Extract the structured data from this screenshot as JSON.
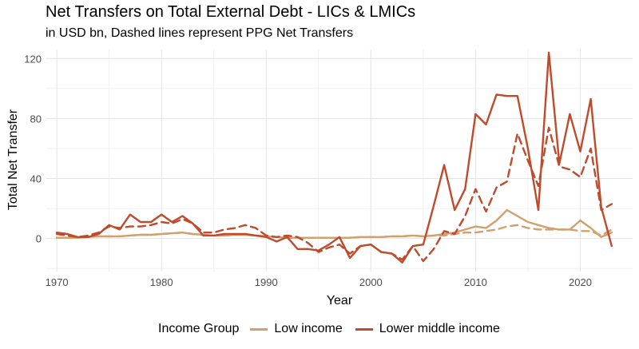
{
  "chart_data": {
    "type": "line",
    "title": "Net Transfers on Total External Debt - LICs & LMICs",
    "subtitle": "in USD bn, Dashed lines represent PPG Net Transfers",
    "xlabel": "Year",
    "ylabel": "Total Net Transfer",
    "xlim": [
      1969,
      2025
    ],
    "ylim": [
      -22,
      126
    ],
    "xticks": [
      1970,
      1980,
      1990,
      2000,
      2010,
      2020
    ],
    "yticks": [
      0,
      40,
      80,
      120
    ],
    "x": [
      1970,
      1971,
      1972,
      1973,
      1974,
      1975,
      1976,
      1977,
      1978,
      1979,
      1980,
      1981,
      1982,
      1983,
      1984,
      1985,
      1986,
      1987,
      1988,
      1989,
      1990,
      1991,
      1992,
      1993,
      1994,
      1995,
      1996,
      1997,
      1998,
      1999,
      2000,
      2001,
      2002,
      2003,
      2004,
      2005,
      2006,
      2007,
      2008,
      2009,
      2010,
      2011,
      2012,
      2013,
      2014,
      2015,
      2016,
      2017,
      2018,
      2019,
      2020,
      2021,
      2022,
      2023
    ],
    "series": [
      {
        "name": "Low income",
        "style": "solid",
        "color": "#d2a06c",
        "values": [
          0.5,
          0.5,
          0.5,
          1,
          1.5,
          1.5,
          1.5,
          2,
          2.5,
          2.5,
          3,
          3.5,
          4,
          3,
          2.5,
          2,
          2,
          2.5,
          2.5,
          2,
          1.5,
          1,
          0.5,
          0.5,
          0.5,
          0.5,
          0.5,
          0.5,
          0.5,
          1,
          1,
          1,
          1.5,
          1.5,
          2,
          1.5,
          2,
          3,
          4,
          6,
          8,
          7,
          12,
          19,
          15,
          11,
          9,
          7,
          6,
          6,
          12,
          7,
          1,
          4
        ]
      },
      {
        "name": "Low income (PPG)",
        "style": "dashed",
        "color": "#d2a06c",
        "values": [
          0.5,
          0.5,
          0.5,
          1,
          1.5,
          1.5,
          1.5,
          2,
          2.5,
          2.5,
          3,
          3.5,
          4,
          3,
          2.5,
          2,
          2,
          2.5,
          2.5,
          2,
          1.5,
          1,
          0.5,
          0.5,
          0.5,
          0.5,
          0.5,
          0.5,
          0.5,
          1,
          1,
          1,
          1.5,
          1.5,
          2,
          1.5,
          2,
          2,
          3,
          4,
          4,
          5,
          6,
          8,
          9,
          7,
          6,
          6,
          6,
          6,
          5,
          5,
          2,
          6
        ]
      },
      {
        "name": "Lower middle income",
        "style": "solid",
        "color": "#bf4a2c",
        "values": [
          4,
          3,
          1,
          1,
          3,
          9,
          6,
          16,
          11,
          11,
          16,
          11,
          15,
          10,
          2,
          2,
          3,
          3,
          3,
          2,
          1,
          -2,
          1,
          -7,
          -7,
          -8,
          -4,
          1,
          -13,
          -5,
          -4,
          -9,
          -10,
          -16,
          -5,
          -4,
          22,
          49,
          19,
          33,
          83,
          76,
          96,
          95,
          95,
          60,
          19,
          124,
          50,
          83,
          58,
          93,
          21,
          -5
        ]
      },
      {
        "name": "Lower middle income (PPG)",
        "style": "dashed",
        "color": "#bf4a2c",
        "values": [
          3,
          2,
          1,
          2,
          4,
          8,
          7,
          8,
          8,
          9,
          11,
          10,
          13,
          10,
          4,
          4,
          6,
          7,
          9,
          7,
          2,
          1,
          2,
          1,
          -3,
          -9,
          -6,
          -4,
          -10,
          -5,
          -4,
          -9,
          -10,
          -14,
          -5,
          -15,
          -7,
          5,
          3,
          15,
          33,
          18,
          34,
          38,
          70,
          52,
          35,
          74,
          48,
          46,
          41,
          60,
          19,
          23
        ]
      }
    ]
  },
  "legend": {
    "title": "Income Group",
    "items": [
      {
        "label": "Low income",
        "color": "#d2a06c"
      },
      {
        "label": "Lower middle income",
        "color": "#bf4a2c"
      }
    ]
  }
}
